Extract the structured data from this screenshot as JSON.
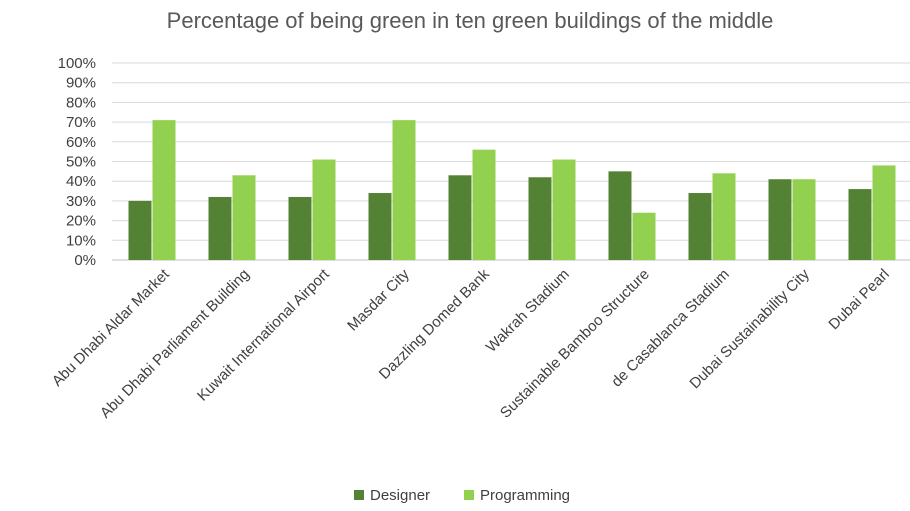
{
  "chart_data": {
    "type": "bar",
    "title": "Percentage of being green in ten green buildings of the middle",
    "xlabel": "",
    "ylabel": "",
    "ylim": [
      0,
      100
    ],
    "yticks": [
      "0%",
      "10%",
      "20%",
      "30%",
      "40%",
      "50%",
      "60%",
      "70%",
      "80%",
      "90%",
      "100%"
    ],
    "categories": [
      "Abu Dhabi Aldar Market",
      "Abu Dhabi Parliament Building",
      "Kuwait International Airport",
      "Masdar City",
      "Dazzling Domed Bank",
      "Wakrah Stadium",
      "Sustainable Bamboo Structure",
      "de Casablanca Stadium",
      "Dubai Sustainability City",
      "Dubai Pearl"
    ],
    "series": [
      {
        "name": "Designer",
        "color": "#548235",
        "values": [
          30,
          32,
          32,
          34,
          43,
          42,
          45,
          34,
          41,
          36
        ]
      },
      {
        "name": "Programming",
        "color": "#92d050",
        "values": [
          71,
          43,
          51,
          71,
          56,
          51,
          24,
          44,
          41,
          48
        ]
      }
    ],
    "grid": true,
    "legend": "bottom"
  }
}
